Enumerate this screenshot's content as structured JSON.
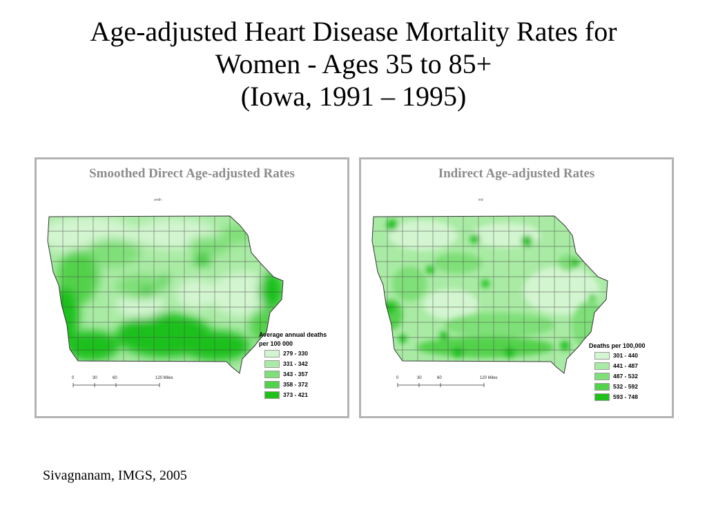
{
  "title": {
    "line1": "Age-adjusted Heart Disease Mortality Rates for",
    "line2": "Women - Ages 35 to 85+",
    "line3": "(Iowa, 1991 – 1995)"
  },
  "maps": [
    {
      "heading": "Smoothed Direct Age-adjusted Rates",
      "tiny_label": "smth",
      "legend": {
        "title_line1": "Average annual deaths",
        "title_line2": "per 100 000",
        "items": [
          {
            "label": "279 - 330",
            "color": "#d3f5d0"
          },
          {
            "label": "331 - 342",
            "color": "#a9eba4"
          },
          {
            "label": "343 - 357",
            "color": "#7fdf78"
          },
          {
            "label": "358 - 372",
            "color": "#52d14b"
          },
          {
            "label": "373 - 421",
            "color": "#1fc01a"
          }
        ]
      },
      "scale": {
        "ticks": [
          "0",
          "30",
          "60",
          "120 Miles"
        ]
      }
    },
    {
      "heading": "Indirect Age-adjusted Rates",
      "tiny_label": "ind",
      "legend": {
        "title_line1": "Deaths per 100,000",
        "title_line2": "",
        "items": [
          {
            "label": "301 - 440",
            "color": "#d3f5d0"
          },
          {
            "label": "441 - 487",
            "color": "#a9eba4"
          },
          {
            "label": "487 - 532",
            "color": "#7fdf78"
          },
          {
            "label": "532 - 592",
            "color": "#52d14b"
          },
          {
            "label": "593 - 748",
            "color": "#1fc01a"
          }
        ]
      },
      "scale": {
        "ticks": [
          "0",
          "30",
          "60",
          "120 Miles"
        ]
      }
    }
  ],
  "credit": "Sivagnanam, IMGS, 2005"
}
